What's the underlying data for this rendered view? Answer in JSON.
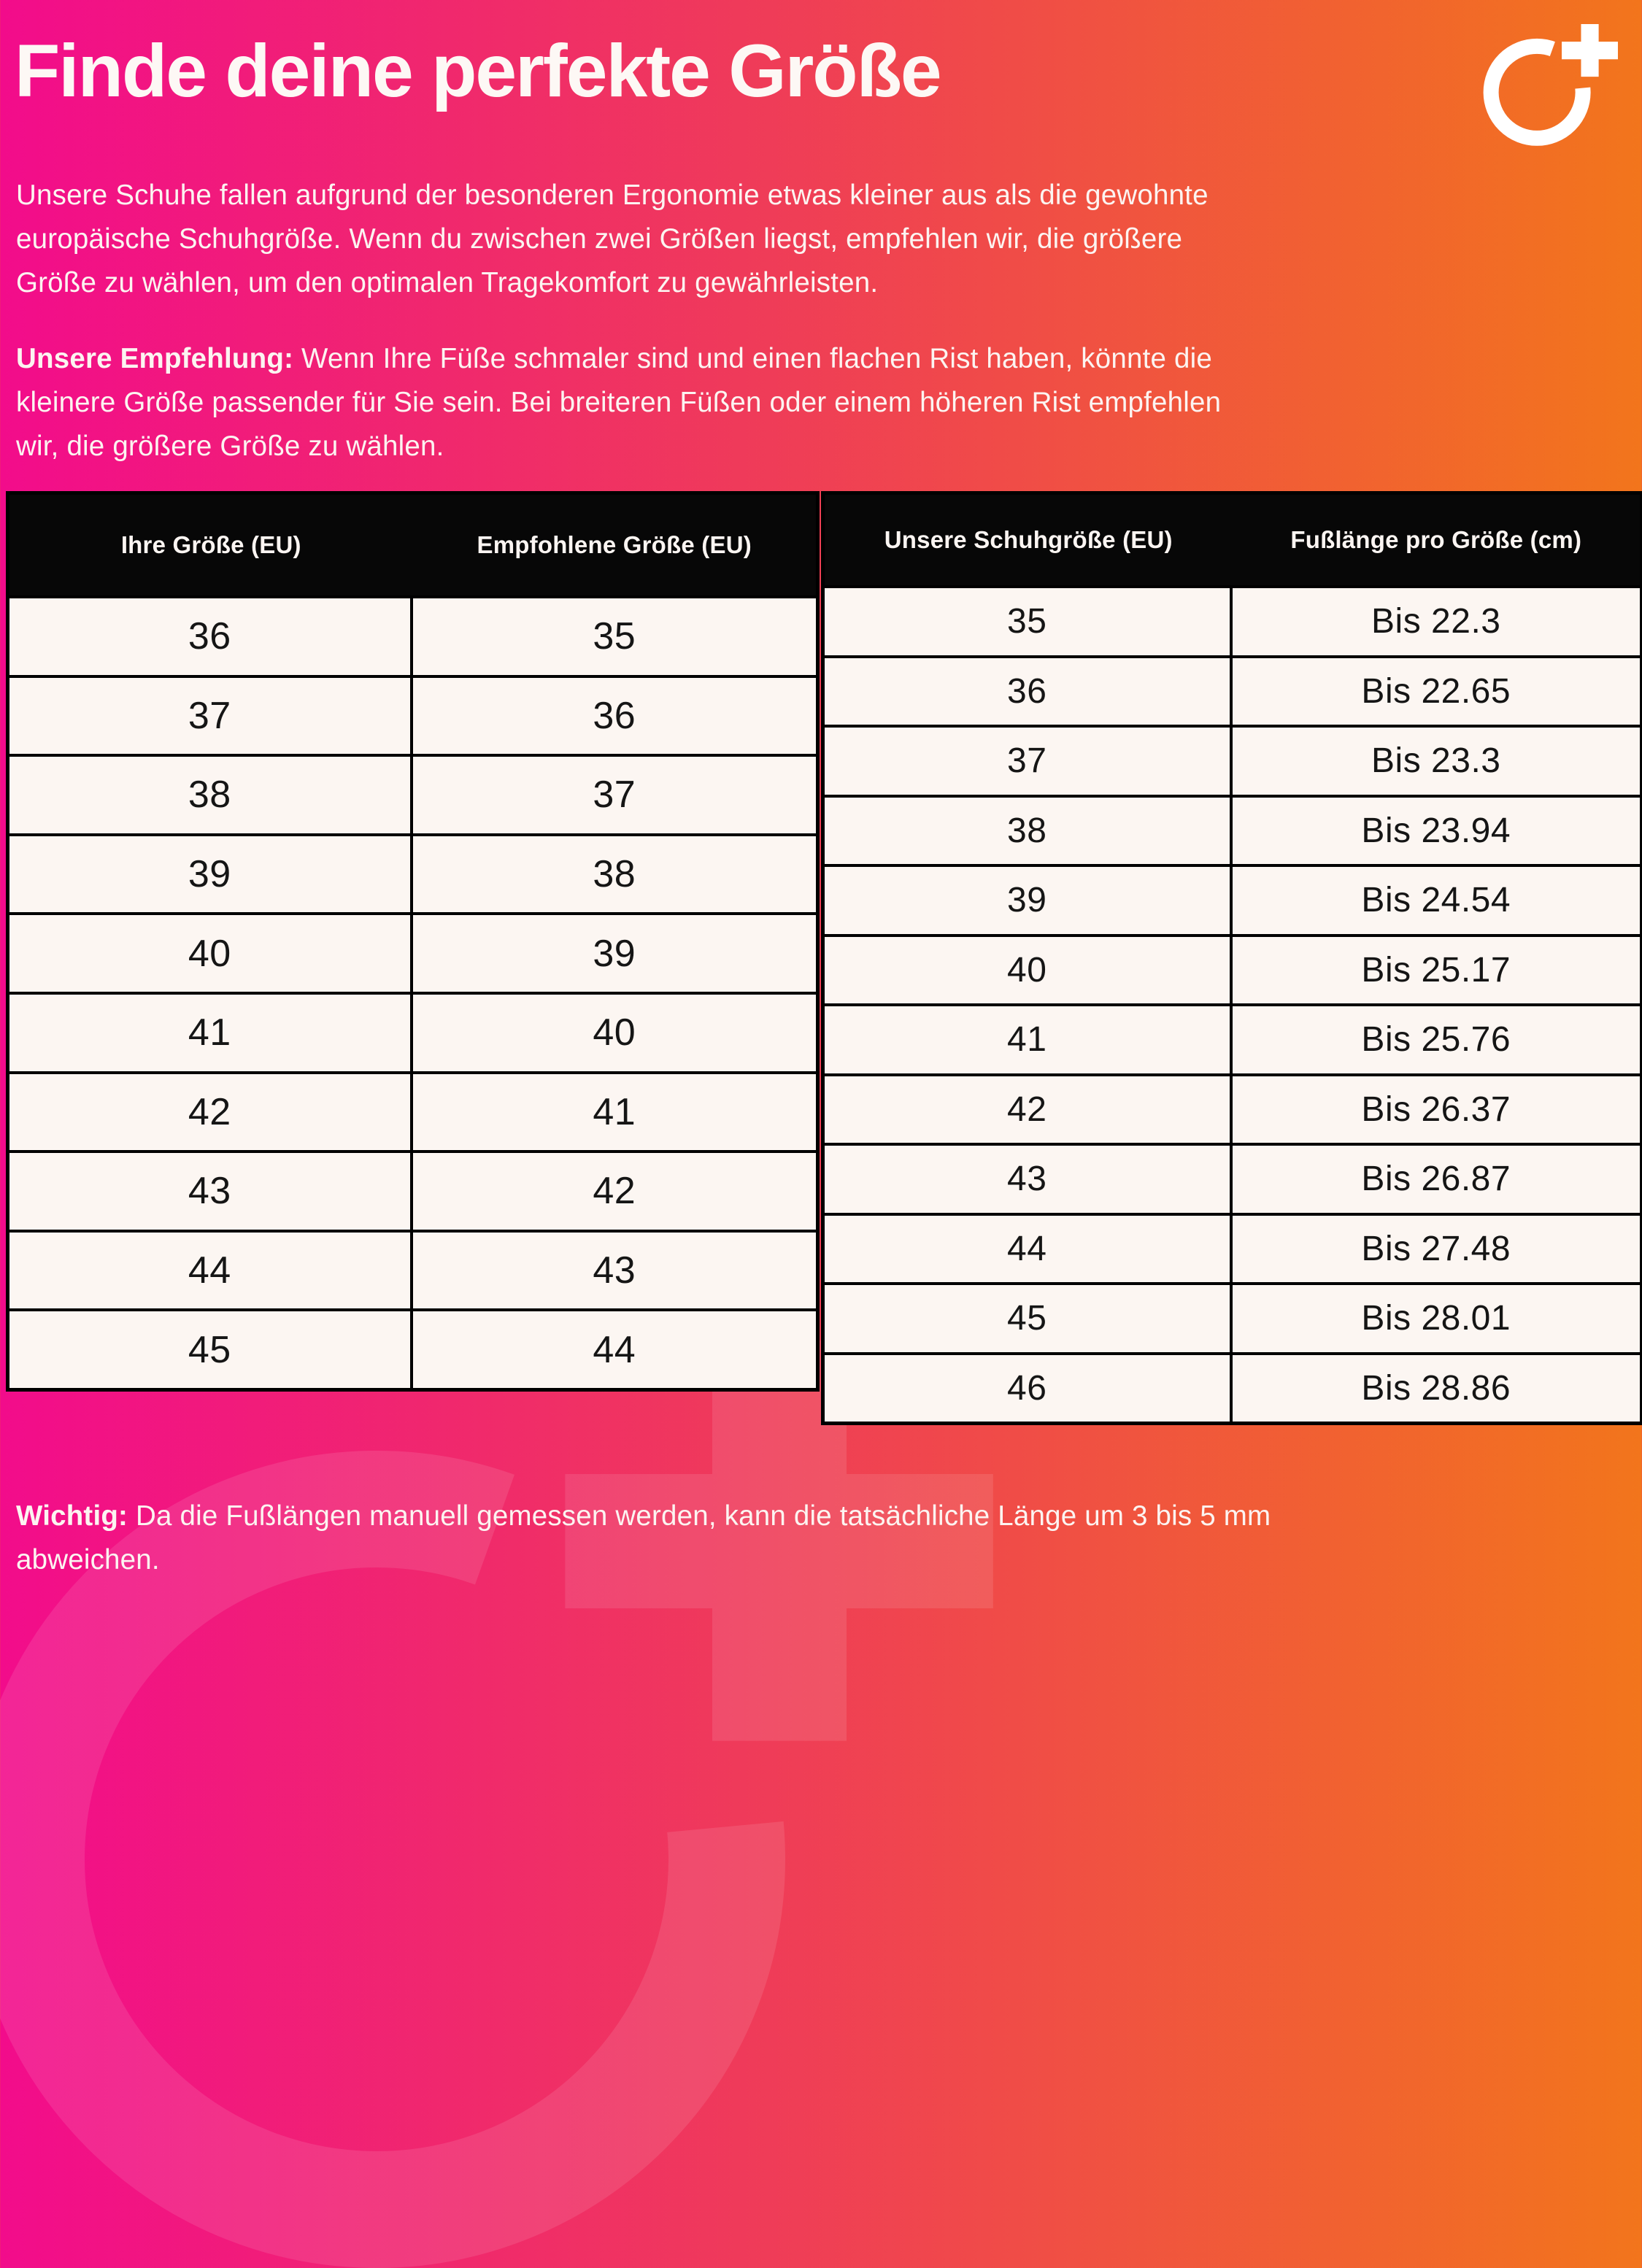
{
  "page": {
    "title": "Finde deine perfekte Größe",
    "intro_lines": [
      "Unsere Schuhe fallen aufgrund der besonderen Ergonomie etwas kleiner aus als die gewohnte",
      "europäische Schuhgröße. Wenn du zwischen zwei Größen liegst, empfehlen wir, die größere",
      "Größe zu wählen, um den optimalen Tragekomfort zu gewährleisten."
    ],
    "recommendation_label": "Unsere Empfehlung:",
    "recommendation_lines": [
      " Wenn Ihre Füße schmaler sind und einen flachen Rist haben, könnte die",
      "kleinere Größe passender für Sie sein. Bei breiteren Füßen oder einem höheren Rist empfehlen",
      "wir, die größere Größe zu wählen."
    ],
    "note_label": "Wichtig:",
    "note_lines": [
      " Da die Fußlängen manuell gemessen werden, kann die tatsächliche Länge um 3 bis 5 mm",
      "abweichen."
    ]
  },
  "logo": {
    "name": "circle-plus-brand-logo"
  },
  "colors": {
    "gradient_left": "#F20C8B",
    "gradient_right": "#F2751C",
    "table_header_bg": "#070707",
    "table_cell_bg": "#FCF6F2",
    "text_light": "#FDF8F5",
    "text_dark": "#151515"
  },
  "size_tables": [
    {
      "headers": [
        "Ihre Größe (EU)",
        "Empfohlene Größe (EU)"
      ],
      "rows": [
        [
          "36",
          "35"
        ],
        [
          "37",
          "36"
        ],
        [
          "38",
          "37"
        ],
        [
          "39",
          "38"
        ],
        [
          "40",
          "39"
        ],
        [
          "41",
          "40"
        ],
        [
          "42",
          "41"
        ],
        [
          "43",
          "42"
        ],
        [
          "44",
          "43"
        ],
        [
          "45",
          "44"
        ]
      ]
    },
    {
      "headers": [
        "Unsere Schuhgröße (EU)",
        "Fußlänge pro Größe (cm)"
      ],
      "rows": [
        [
          "35",
          "Bis 22.3"
        ],
        [
          "36",
          "Bis 22.65"
        ],
        [
          "37",
          "Bis 23.3"
        ],
        [
          "38",
          "Bis 23.94"
        ],
        [
          "39",
          "Bis 24.54"
        ],
        [
          "40",
          "Bis 25.17"
        ],
        [
          "41",
          "Bis 25.76"
        ],
        [
          "42",
          "Bis 26.37"
        ],
        [
          "43",
          "Bis 26.87"
        ],
        [
          "44",
          "Bis 27.48"
        ],
        [
          "45",
          "Bis 28.01"
        ],
        [
          "46",
          "Bis 28.86"
        ]
      ]
    }
  ]
}
